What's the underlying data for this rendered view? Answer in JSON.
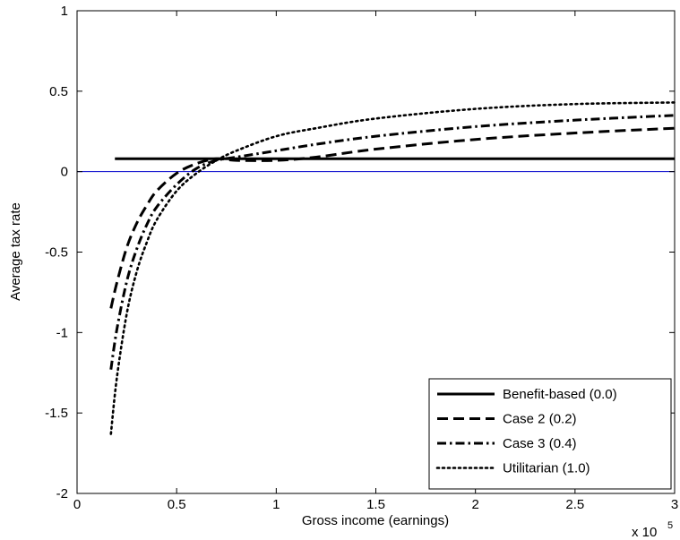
{
  "chart_data": {
    "type": "line",
    "title": "",
    "xlabel": "Gross income (earnings)",
    "ylabel": "Average tax rate",
    "x_exponent_label": "x 10",
    "x_exponent_power": "5",
    "xlim": [
      0,
      3
    ],
    "ylim": [
      -2,
      1
    ],
    "xticks": [
      0,
      0.5,
      1,
      1.5,
      2,
      2.5,
      3
    ],
    "xtick_labels": [
      "0",
      "0.5",
      "1",
      "1.5",
      "2",
      "2.5",
      "3"
    ],
    "yticks": [
      -2,
      -1.5,
      -1,
      -0.5,
      0,
      0.5,
      1
    ],
    "ytick_labels": [
      "-2",
      "-1.5",
      "-1",
      "-0.5",
      "0",
      "0.5",
      "1"
    ],
    "grid": false,
    "legend_position": "bottom-right",
    "zero_line": {
      "y": 0,
      "color": "#0000cc"
    },
    "series": [
      {
        "name": "Benefit-based (0.0)",
        "style": "solid",
        "color": "#000000",
        "x": [
          0.19,
          0.5,
          1,
          1.5,
          2,
          2.5,
          3
        ],
        "y": [
          0.08,
          0.08,
          0.08,
          0.08,
          0.08,
          0.08,
          0.08
        ]
      },
      {
        "name": "Case 2 (0.2)",
        "style": "dashed",
        "color": "#000000",
        "x": [
          0.17,
          0.2,
          0.25,
          0.3,
          0.35,
          0.4,
          0.5,
          0.6,
          0.7,
          0.8,
          1.0,
          1.2,
          1.5,
          2.0,
          2.5,
          3.0
        ],
        "y": [
          -0.85,
          -0.69,
          -0.47,
          -0.32,
          -0.21,
          -0.12,
          -0.01,
          0.05,
          0.08,
          0.07,
          0.07,
          0.09,
          0.14,
          0.2,
          0.24,
          0.27
        ]
      },
      {
        "name": "Case 3 (0.4)",
        "style": "dashdot",
        "color": "#000000",
        "x": [
          0.17,
          0.2,
          0.25,
          0.3,
          0.35,
          0.4,
          0.5,
          0.6,
          0.7,
          0.8,
          1.0,
          1.2,
          1.5,
          2.0,
          2.5,
          3.0
        ],
        "y": [
          -1.23,
          -0.98,
          -0.68,
          -0.48,
          -0.33,
          -0.22,
          -0.08,
          0.02,
          0.07,
          0.09,
          0.13,
          0.17,
          0.22,
          0.28,
          0.32,
          0.35
        ]
      },
      {
        "name": "Utilitarian (1.0)",
        "style": "dotted",
        "color": "#000000",
        "x": [
          0.17,
          0.2,
          0.25,
          0.3,
          0.35,
          0.4,
          0.5,
          0.6,
          0.7,
          0.8,
          1.0,
          1.2,
          1.5,
          2.0,
          2.5,
          3.0
        ],
        "y": [
          -1.63,
          -1.28,
          -0.88,
          -0.62,
          -0.44,
          -0.3,
          -0.12,
          -0.01,
          0.07,
          0.13,
          0.22,
          0.27,
          0.33,
          0.39,
          0.42,
          0.43
        ]
      }
    ]
  }
}
